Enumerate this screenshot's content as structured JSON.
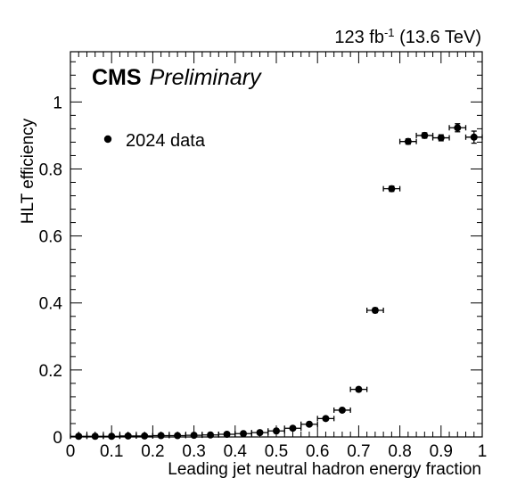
{
  "header": {
    "lumi_value": "123 fb",
    "lumi_exp": "-1",
    "energy": " (13.6 TeV)",
    "experiment": "CMS",
    "status": "Preliminary"
  },
  "chart_data": {
    "type": "scatter",
    "title": "",
    "xlabel": "Leading jet neutral hadron energy fraction",
    "ylabel": "HLT efficiency",
    "xlim": [
      0,
      1
    ],
    "ylim": [
      0,
      1.15
    ],
    "x_ticks": [
      "0",
      "0.1",
      "0.2",
      "0.3",
      "0.4",
      "0.5",
      "0.6",
      "0.7",
      "0.8",
      "0.9",
      "1"
    ],
    "y_ticks": [
      "0",
      "0.2",
      "0.4",
      "0.6",
      "0.8",
      "1"
    ],
    "legend": {
      "position": "top-left",
      "entries": [
        "2024 data"
      ]
    },
    "grid": false,
    "series": [
      {
        "name": "2024 data",
        "x_err": 0.02,
        "x": [
          0.02,
          0.06,
          0.1,
          0.14,
          0.18,
          0.22,
          0.26,
          0.3,
          0.34,
          0.38,
          0.42,
          0.46,
          0.5,
          0.54,
          0.58,
          0.62,
          0.66,
          0.7,
          0.74,
          0.78,
          0.82,
          0.86,
          0.9,
          0.94,
          0.98
        ],
        "y": [
          0.002,
          0.002,
          0.002,
          0.003,
          0.003,
          0.004,
          0.004,
          0.005,
          0.006,
          0.008,
          0.01,
          0.013,
          0.018,
          0.026,
          0.038,
          0.055,
          0.08,
          0.142,
          0.378,
          0.741,
          0.882,
          0.9,
          0.893,
          0.923,
          0.895
        ],
        "y_err": [
          0.001,
          0.001,
          0.001,
          0.001,
          0.001,
          0.001,
          0.001,
          0.001,
          0.001,
          0.001,
          0.002,
          0.002,
          0.002,
          0.003,
          0.003,
          0.004,
          0.005,
          0.006,
          0.007,
          0.008,
          0.008,
          0.008,
          0.009,
          0.012,
          0.018
        ]
      }
    ]
  }
}
